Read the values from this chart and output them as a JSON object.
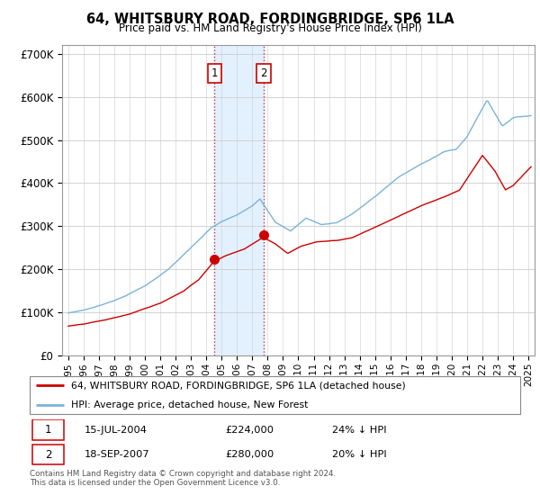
{
  "title": "64, WHITSBURY ROAD, FORDINGBRIDGE, SP6 1LA",
  "subtitle": "Price paid vs. HM Land Registry's House Price Index (HPI)",
  "ylim": [
    0,
    720000
  ],
  "yticks": [
    0,
    100000,
    200000,
    300000,
    400000,
    500000,
    600000,
    700000
  ],
  "hpi_color": "#7ab4d8",
  "price_color": "#cc0000",
  "sale1_date": 2004.54,
  "sale1_price": 224000,
  "sale1_label": "1",
  "sale2_date": 2007.72,
  "sale2_price": 280000,
  "sale2_label": "2",
  "shaded_region_x1": 2004.54,
  "shaded_region_x2": 2007.72,
  "legend_line1": "64, WHITSBURY ROAD, FORDINGBRIDGE, SP6 1LA (detached house)",
  "legend_line2": "HPI: Average price, detached house, New Forest",
  "table_row1_num": "1",
  "table_row1_date": "15-JUL-2004",
  "table_row1_price": "£224,000",
  "table_row1_hpi": "24% ↓ HPI",
  "table_row2_num": "2",
  "table_row2_date": "18-SEP-2007",
  "table_row2_price": "£280,000",
  "table_row2_hpi": "20% ↓ HPI",
  "footer": "Contains HM Land Registry data © Crown copyright and database right 2024.\nThis data is licensed under the Open Government Licence v3.0.",
  "xlim_start": 1994.6,
  "xlim_end": 2025.4
}
